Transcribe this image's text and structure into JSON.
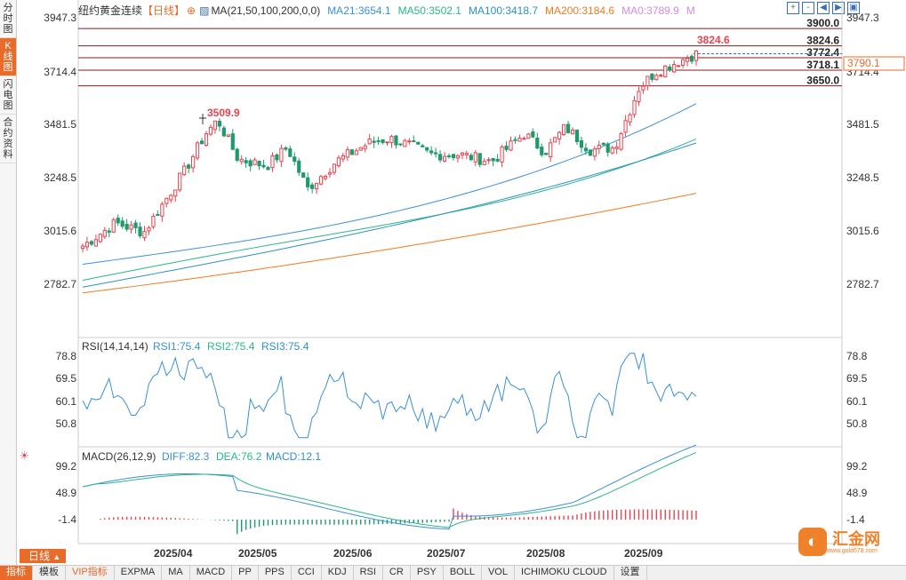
{
  "left_tabs": [
    {
      "label": "分时图",
      "active": false
    },
    {
      "label": "K线图",
      "active": true
    },
    {
      "label": "闪电图",
      "active": false
    },
    {
      "label": "合约资料",
      "active": false
    }
  ],
  "main_header": {
    "title": "纽约黄金连续",
    "period_tag": "【日线】",
    "ma_params": "MA(21,50,100,200,0,0)",
    "ma21": "MA21:3654.1",
    "ma50": "MA50:3502.1",
    "ma100": "MA100:3418.7",
    "ma200": "MA200:3184.6",
    "ma0": "MA0:3789.9",
    "m_label": "M"
  },
  "top_icons": [
    "+",
    "-",
    "◀",
    "▶",
    "▣"
  ],
  "price_axis": [
    "3947.3",
    "3714.4",
    "3481.5",
    "3248.5",
    "3015.6",
    "2782.7"
  ],
  "level_lines": [
    {
      "value": 3900.0,
      "label": "3900.0"
    },
    {
      "value": 3824.6,
      "label": "3824.6"
    },
    {
      "value": 3772.4,
      "label": "3772.4"
    },
    {
      "value": 3718.1,
      "label": "3718.1"
    },
    {
      "value": 3650.0,
      "label": "3650.0"
    }
  ],
  "current_price": "3790.1",
  "peak_label": "3824.6",
  "earlier_high_label": "3509.9",
  "rsi_header": {
    "params": "RSI(14,14,14)",
    "rsi1": "RSI1:75.4",
    "rsi2": "RSI2:75.4",
    "rsi3": "RSI3:75.4"
  },
  "rsi_axis": [
    "78.8",
    "69.5",
    "60.1",
    "50.8"
  ],
  "macd_header": {
    "params": "MACD(26,12,9)",
    "diff": "DIFF:82.3",
    "dea": "DEA:76.2",
    "macd": "MACD:12.1"
  },
  "macd_axis": [
    "99.2",
    "48.9",
    "-1.4"
  ],
  "date_axis": [
    "2025/04",
    "2025/05",
    "2025/06",
    "2025/07",
    "2025/08",
    "2025/09"
  ],
  "period_button": "日线",
  "bottom_tabs": [
    {
      "label": "指标",
      "active": true
    },
    {
      "label": "模板"
    },
    {
      "label": "VIP指标",
      "vip": true
    },
    {
      "label": "EXPMA"
    },
    {
      "label": "MA"
    },
    {
      "label": "MACD"
    },
    {
      "label": "PP"
    },
    {
      "label": "PPS"
    },
    {
      "label": "CCI"
    },
    {
      "label": "KDJ"
    },
    {
      "label": "RSI"
    },
    {
      "label": "CR"
    },
    {
      "label": "PSY"
    },
    {
      "label": "BOLL"
    },
    {
      "label": "VOL"
    },
    {
      "label": "ICHIMOKU CLOUD"
    },
    {
      "label": "设置"
    }
  ],
  "logo": {
    "mark": "◐",
    "name": "汇金网",
    "url_text": "www.gold678.com"
  },
  "colors": {
    "up": "#e8434f",
    "down": "#1e9a6b",
    "ma21": "#3a8fd9",
    "ma50": "#2bb58a",
    "ma100": "#2d90c8",
    "ma200": "#f07a20",
    "accent": "#e86b2a",
    "level": "#8b1a1a"
  }
}
